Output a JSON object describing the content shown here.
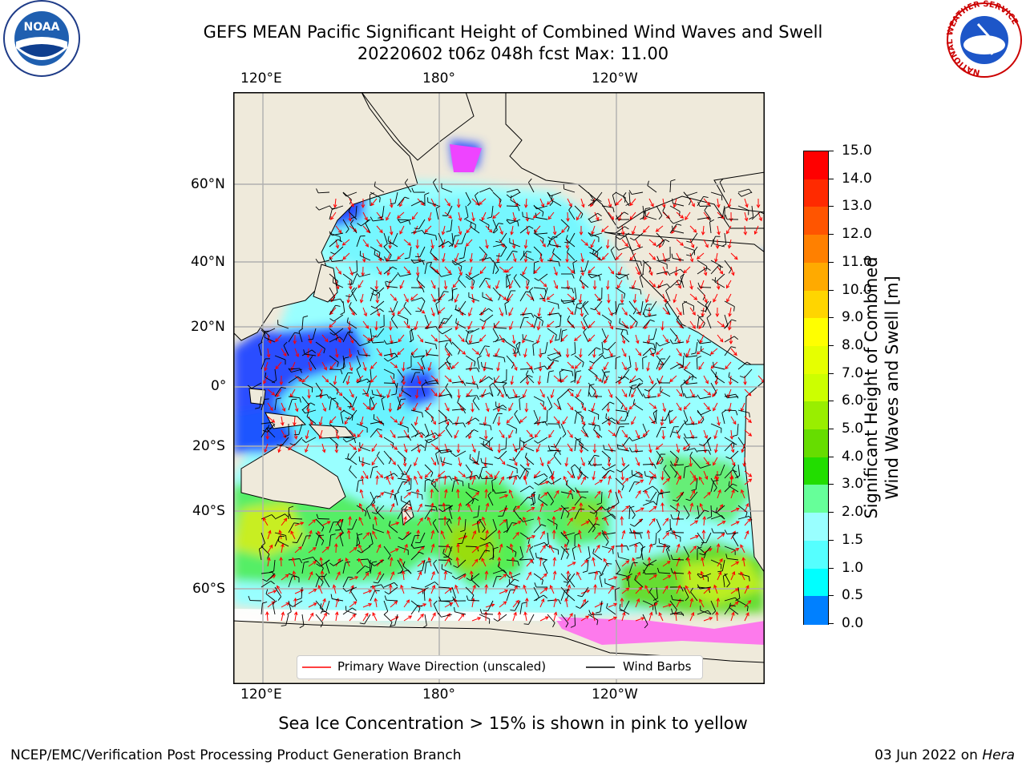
{
  "header": {
    "title_line1": "GEFS MEAN Pacific Significant Height of Combined Wind Waves and Swell",
    "title_line2": "20220602 t06z 048h fcst   Max: 11.00"
  },
  "map": {
    "top_lon_labels": [
      "120°E",
      "180°",
      "120°W"
    ],
    "bottom_lon_labels": [
      "120°E",
      "180°",
      "120°W"
    ],
    "lat_labels": [
      "60°N",
      "40°N",
      "20°N",
      "0°",
      "20°S",
      "40°S",
      "60°S"
    ],
    "legend": {
      "wave_direction": "Primary Wave Direction (unscaled)",
      "wind_barbs": "Wind Barbs"
    },
    "colors": {
      "land": "#efeadb",
      "ocean_low": "#99ffff",
      "ocean_mid": "#33ff99",
      "wave_arrow": "#ff0000",
      "wind_barb": "#000000"
    }
  },
  "colorbar": {
    "label_line1": "Significant Height of Combined",
    "label_line2": "Wind Waves and Swell [m]",
    "ticks": [
      "15.0",
      "14.0",
      "13.0",
      "12.0",
      "11.0",
      "10.0",
      "9.0",
      "8.0",
      "7.0",
      "6.0",
      "5.0",
      "4.0",
      "3.0",
      "2.0",
      "1.5",
      "1.0",
      "0.5",
      "0.0"
    ],
    "colors": [
      "#ff0000",
      "#ff2a00",
      "#ff5500",
      "#ff8000",
      "#ffaa00",
      "#ffd500",
      "#ffff00",
      "#e6ff00",
      "#ccff00",
      "#99ee00",
      "#66dd00",
      "#22dd00",
      "#66ff99",
      "#99ffff",
      "#55ffff",
      "#00ffff",
      "#0080ff",
      "#0000ff"
    ]
  },
  "notes": {
    "sea_ice": "Sea Ice Concentration > 15% is shown in pink to yellow"
  },
  "footer": {
    "left": "NCEP/EMC/Verification Post Processing Product Generation Branch",
    "date": "03 Jun 2022 on ",
    "machine": "Hera"
  },
  "logos": {
    "noaa": "NOAA",
    "nws_ring": "NATIONAL WEATHER SERVICE"
  }
}
